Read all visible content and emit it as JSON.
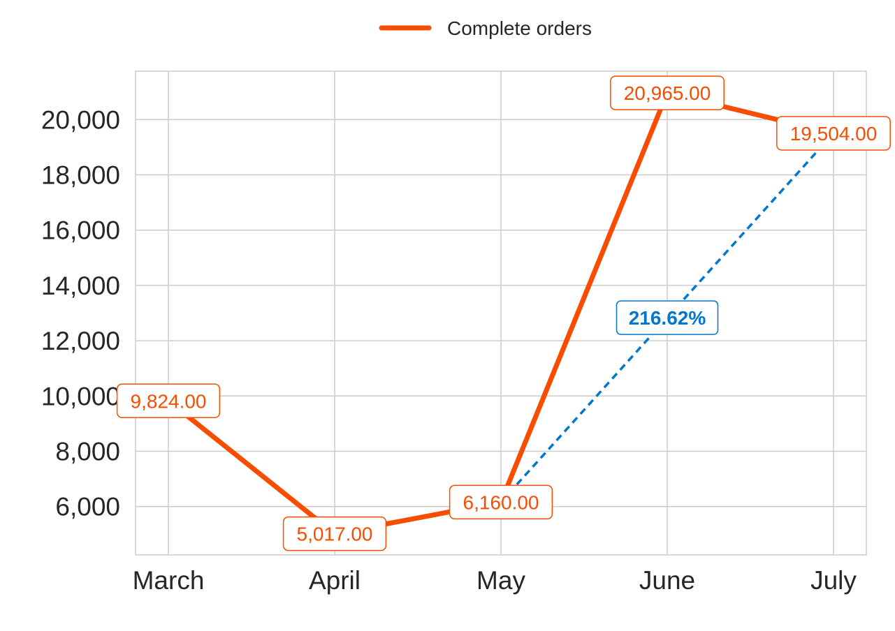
{
  "chart_data": {
    "type": "line",
    "categories": [
      "March",
      "April",
      "May",
      "June",
      "July"
    ],
    "series": [
      {
        "name": "Complete orders",
        "values": [
          9824,
          5017,
          6160,
          20965,
          19504
        ],
        "labels": [
          "9,824.00",
          "5,017.00",
          "6,160.00",
          "20,965.00",
          "19,504.00"
        ],
        "color": "#f84c00"
      }
    ],
    "yticks": [
      6000,
      8000,
      10000,
      12000,
      14000,
      16000,
      18000,
      20000
    ],
    "ytick_labels": [
      "6,000",
      "8,000",
      "10,000",
      "12,000",
      "14,000",
      "16,000",
      "18,000",
      "20,000"
    ],
    "ylim": [
      4250,
      21750
    ],
    "grid": true,
    "legend_position": "top-center",
    "annotation": {
      "text": "216.62%",
      "from_category": "May",
      "to_category": "July",
      "color": "#0077cc"
    }
  }
}
